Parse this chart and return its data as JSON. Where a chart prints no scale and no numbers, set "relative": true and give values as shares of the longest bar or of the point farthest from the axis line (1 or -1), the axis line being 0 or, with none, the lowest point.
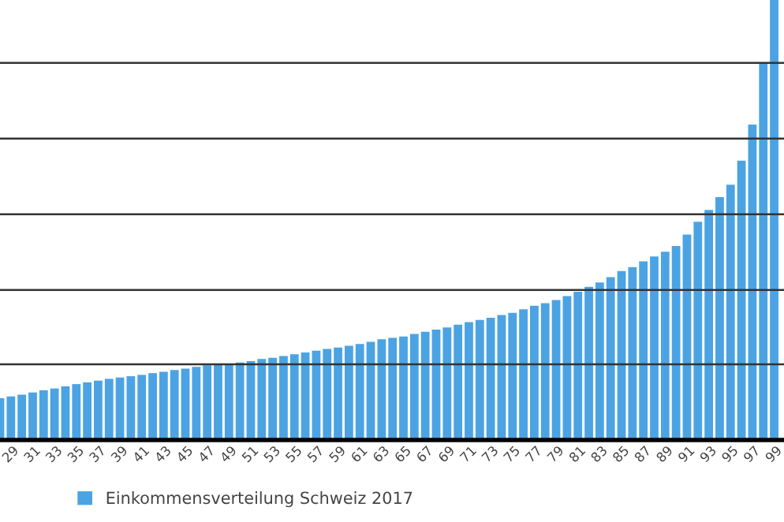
{
  "chart_data": {
    "type": "bar",
    "relative": true,
    "categories": [
      null,
      "29",
      null,
      "31",
      null,
      "33",
      null,
      "35",
      null,
      "37",
      null,
      "39",
      null,
      "41",
      null,
      "43",
      null,
      "45",
      null,
      "47",
      null,
      "49",
      null,
      "51",
      null,
      "53",
      null,
      "55",
      null,
      "57",
      null,
      "59",
      null,
      "61",
      null,
      "63",
      null,
      "65",
      null,
      "67",
      null,
      "69",
      null,
      "71",
      null,
      "73",
      null,
      "75",
      null,
      "77",
      null,
      "79",
      null,
      "81",
      null,
      "83",
      null,
      "85",
      null,
      "87",
      null,
      "89",
      null,
      "91",
      null,
      "93",
      null,
      "95",
      null,
      "97",
      null,
      "99"
    ],
    "series": [
      {
        "name": "Einkommensverteilung Schweiz 2017",
        "color": "#4ba3e3",
        "values": [
          0.095,
          0.099,
          0.103,
          0.108,
          0.113,
          0.117,
          0.122,
          0.127,
          0.131,
          0.135,
          0.139,
          0.142,
          0.145,
          0.148,
          0.152,
          0.155,
          0.159,
          0.162,
          0.166,
          0.17,
          0.171,
          0.173,
          0.176,
          0.179,
          0.184,
          0.187,
          0.191,
          0.195,
          0.199,
          0.203,
          0.207,
          0.21,
          0.214,
          0.218,
          0.223,
          0.229,
          0.232,
          0.235,
          0.241,
          0.246,
          0.251,
          0.256,
          0.262,
          0.268,
          0.273,
          0.278,
          0.284,
          0.289,
          0.297,
          0.305,
          0.311,
          0.318,
          0.327,
          0.337,
          0.348,
          0.358,
          0.37,
          0.384,
          0.393,
          0.406,
          0.417,
          0.428,
          0.441,
          0.467,
          0.496,
          0.523,
          0.552,
          0.58,
          0.635,
          0.717,
          0.857,
          1
        ]
      }
    ],
    "ref_lines": [
      {
        "axis": "y",
        "value": 0.172,
        "color": "#333333"
      },
      {
        "axis": "y",
        "value": 0.341,
        "color": "#333333"
      },
      {
        "axis": "y",
        "value": 0.513,
        "color": "#333333"
      },
      {
        "axis": "y",
        "value": 0.685,
        "color": "#333333"
      },
      {
        "axis": "y",
        "value": 0.857,
        "color": "#333333"
      }
    ],
    "legend": "bottom"
  }
}
